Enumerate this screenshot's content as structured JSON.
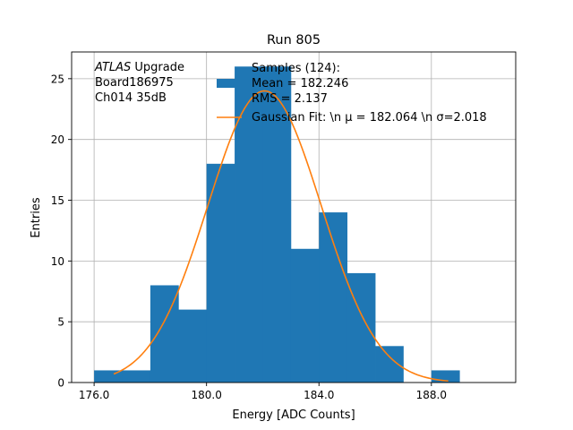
{
  "chart_data": {
    "type": "bar",
    "title": "Run 805",
    "xlabel": "Energy [ADC Counts]",
    "ylabel": "Entries",
    "xlim": [
      175.2,
      191.0
    ],
    "ylim": [
      0,
      27.2
    ],
    "grid": true,
    "x_ticks": [
      {
        "value": 176,
        "label": "176.0"
      },
      {
        "value": 180,
        "label": "180.0"
      },
      {
        "value": 184,
        "label": "184.0"
      },
      {
        "value": 188,
        "label": "188.0"
      }
    ],
    "y_ticks": [
      {
        "value": 0,
        "label": "0"
      },
      {
        "value": 5,
        "label": "5"
      },
      {
        "value": 10,
        "label": "10"
      },
      {
        "value": 15,
        "label": "15"
      },
      {
        "value": 20,
        "label": "20"
      },
      {
        "value": 25,
        "label": "25"
      }
    ],
    "histogram": {
      "bin_width": 1,
      "bins": [
        {
          "x0": 176,
          "count": 1
        },
        {
          "x0": 177,
          "count": 1
        },
        {
          "x0": 178,
          "count": 8
        },
        {
          "x0": 179,
          "count": 6
        },
        {
          "x0": 180,
          "count": 18
        },
        {
          "x0": 181,
          "count": 26
        },
        {
          "x0": 182,
          "count": 26
        },
        {
          "x0": 183,
          "count": 11
        },
        {
          "x0": 184,
          "count": 14
        },
        {
          "x0": 185,
          "count": 9
        },
        {
          "x0": 186,
          "count": 3
        },
        {
          "x0": 187,
          "count": 0
        },
        {
          "x0": 188,
          "count": 1
        }
      ],
      "color": "#1f77b4"
    },
    "fit": {
      "mu": 182.064,
      "sigma": 2.018,
      "amplitude": 24.0,
      "x_range": [
        176.7,
        188.6
      ],
      "color": "#ff7f0e"
    },
    "annotation_lines": [
      {
        "italic": "ATLAS",
        "normal": " Upgrade"
      },
      {
        "italic": "",
        "normal": " Board186975"
      },
      {
        "italic": "",
        "normal": " Ch014 35dB"
      }
    ],
    "legend": {
      "placement": "top-right",
      "hist_label_lines": [
        "Samples (124):",
        " Mean = 182.246",
        " RMS = 2.137"
      ],
      "fit_label": "Gaussian Fit: \\n μ = 182.064 \\n σ=2.018"
    }
  }
}
